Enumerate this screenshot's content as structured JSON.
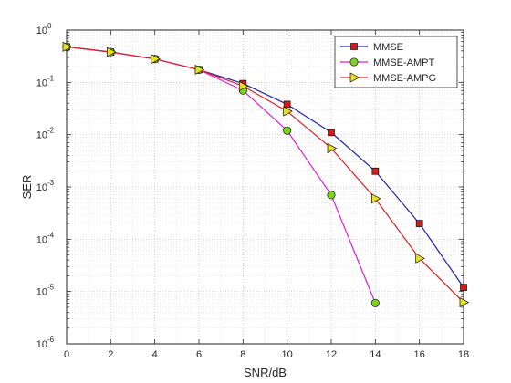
{
  "chart_data": {
    "type": "line",
    "x": [
      0,
      2,
      4,
      6,
      8,
      10,
      12,
      14,
      16,
      18
    ],
    "xlabel": "SNR/dB",
    "ylabel": "SER",
    "xlim": [
      0,
      18
    ],
    "ylim": [
      1e-06,
      1
    ],
    "yscale": "log",
    "grid": true,
    "legend_position": "top-right",
    "x_ticks": [
      "0",
      "2",
      "4",
      "6",
      "8",
      "10",
      "12",
      "14",
      "16",
      "18"
    ],
    "y_ticks": [
      {
        "base": "10",
        "exp": "-6",
        "value": 1e-06
      },
      {
        "base": "10",
        "exp": "-5",
        "value": 1e-05
      },
      {
        "base": "10",
        "exp": "-4",
        "value": 0.0001
      },
      {
        "base": "10",
        "exp": "-3",
        "value": 0.001
      },
      {
        "base": "10",
        "exp": "-2",
        "value": 0.01
      },
      {
        "base": "10",
        "exp": "-1",
        "value": 0.1
      },
      {
        "base": "10",
        "exp": "0",
        "value": 1
      }
    ],
    "series": [
      {
        "name": "MMSE",
        "color": "#1f1fb4",
        "marker": "square",
        "marker_color": "#d01c1c",
        "x": [
          0,
          2,
          4,
          6,
          8,
          10,
          12,
          14,
          16,
          18
        ],
        "y": [
          0.48,
          0.38,
          0.28,
          0.175,
          0.095,
          0.038,
          0.011,
          0.002,
          0.0002,
          1.2e-05
        ]
      },
      {
        "name": "MMSE-AMPT",
        "color": "#e020d0",
        "marker": "circle",
        "marker_color": "#7ed321",
        "x": [
          0,
          2,
          4,
          6,
          8,
          10,
          12,
          14
        ],
        "y": [
          0.48,
          0.38,
          0.28,
          0.175,
          0.07,
          0.012,
          0.0007,
          6e-06
        ]
      },
      {
        "name": "MMSE-AMPG",
        "color": "#e02020",
        "marker": "triangle-right",
        "marker_color": "#e8e020",
        "x": [
          0,
          2,
          4,
          6,
          8,
          10,
          12,
          14,
          16,
          18
        ],
        "y": [
          0.48,
          0.38,
          0.28,
          0.175,
          0.085,
          0.028,
          0.0055,
          0.0006,
          4.3e-05,
          6.2e-06
        ]
      }
    ]
  }
}
